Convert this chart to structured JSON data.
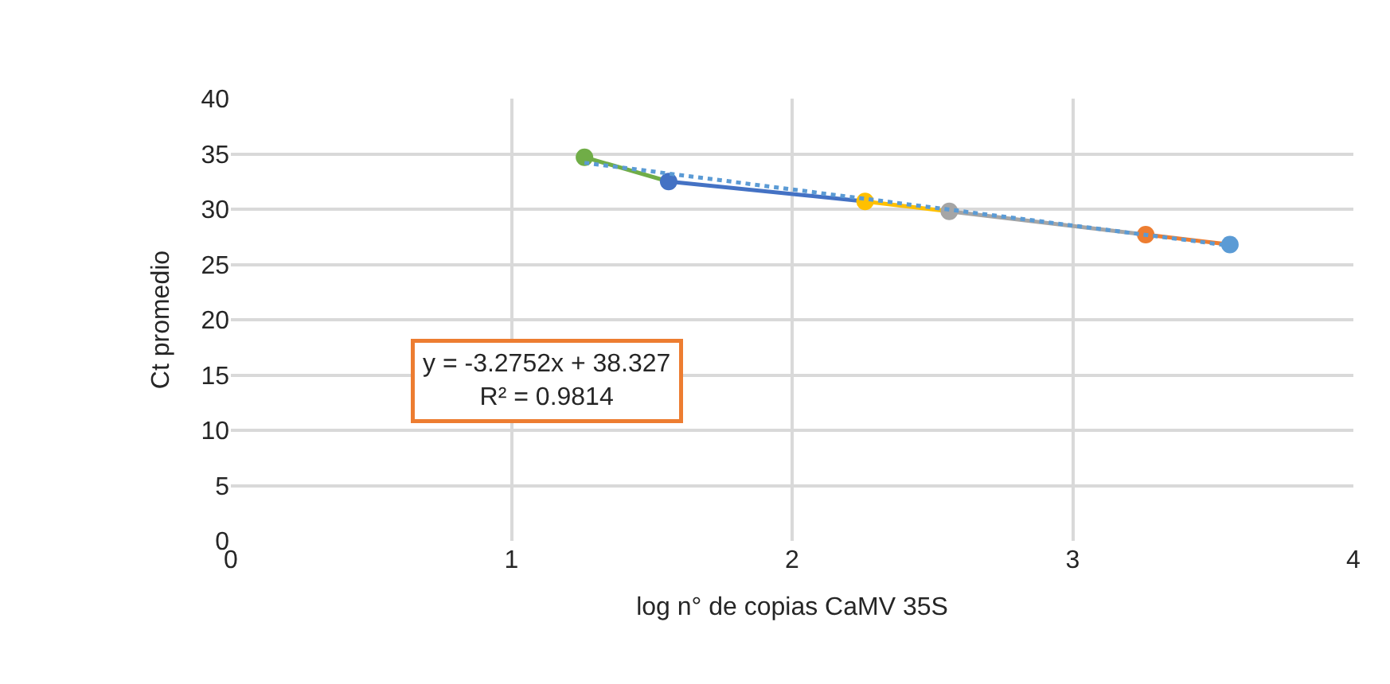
{
  "chart_data": {
    "type": "line",
    "xlabel": "log n° de copias CaMV 35S",
    "ylabel": "Ct promedio",
    "series": [
      {
        "x": [
          1.26,
          1.56
        ],
        "values": [
          34.7,
          32.5
        ],
        "color": "#70ad47"
      },
      {
        "x": [
          1.56,
          2.26
        ],
        "values": [
          32.5,
          30.7
        ],
        "color": "#4472c4"
      },
      {
        "x": [
          2.26,
          2.56
        ],
        "values": [
          30.7,
          29.8
        ],
        "color": "#ffc000"
      },
      {
        "x": [
          2.56,
          3.26
        ],
        "values": [
          29.8,
          27.7
        ],
        "color": "#a5a5a5"
      },
      {
        "x": [
          3.26,
          3.56
        ],
        "values": [
          27.7,
          26.8
        ],
        "color": "#ed7d31"
      },
      {
        "type": "scatter",
        "x": [
          1.26,
          1.56,
          2.26,
          2.56,
          3.26,
          3.56
        ],
        "values": [
          34.7,
          32.5,
          30.7,
          29.8,
          27.7,
          26.8
        ],
        "colors": [
          "#70ad47",
          "#4472c4",
          "#ffc000",
          "#a5a5a5",
          "#ed7d31",
          "#5b9bd5"
        ],
        "marker": "circle"
      },
      {
        "x": [
          1.26,
          3.56
        ],
        "values": [
          34.2,
          26.7
        ],
        "color": "#5b9bd5",
        "line_style": "dotted"
      }
    ],
    "annotations": [
      "y = -3.2752x + 38.327\nR² = 0.9814"
    ],
    "xlim": [
      0,
      4
    ],
    "xticks": [
      0,
      1,
      2,
      3,
      4
    ],
    "ylim": [
      0,
      40
    ],
    "yticks": [
      0,
      5,
      10,
      15,
      20,
      25,
      30,
      35,
      40
    ],
    "grid": true,
    "line_style": "solid"
  }
}
